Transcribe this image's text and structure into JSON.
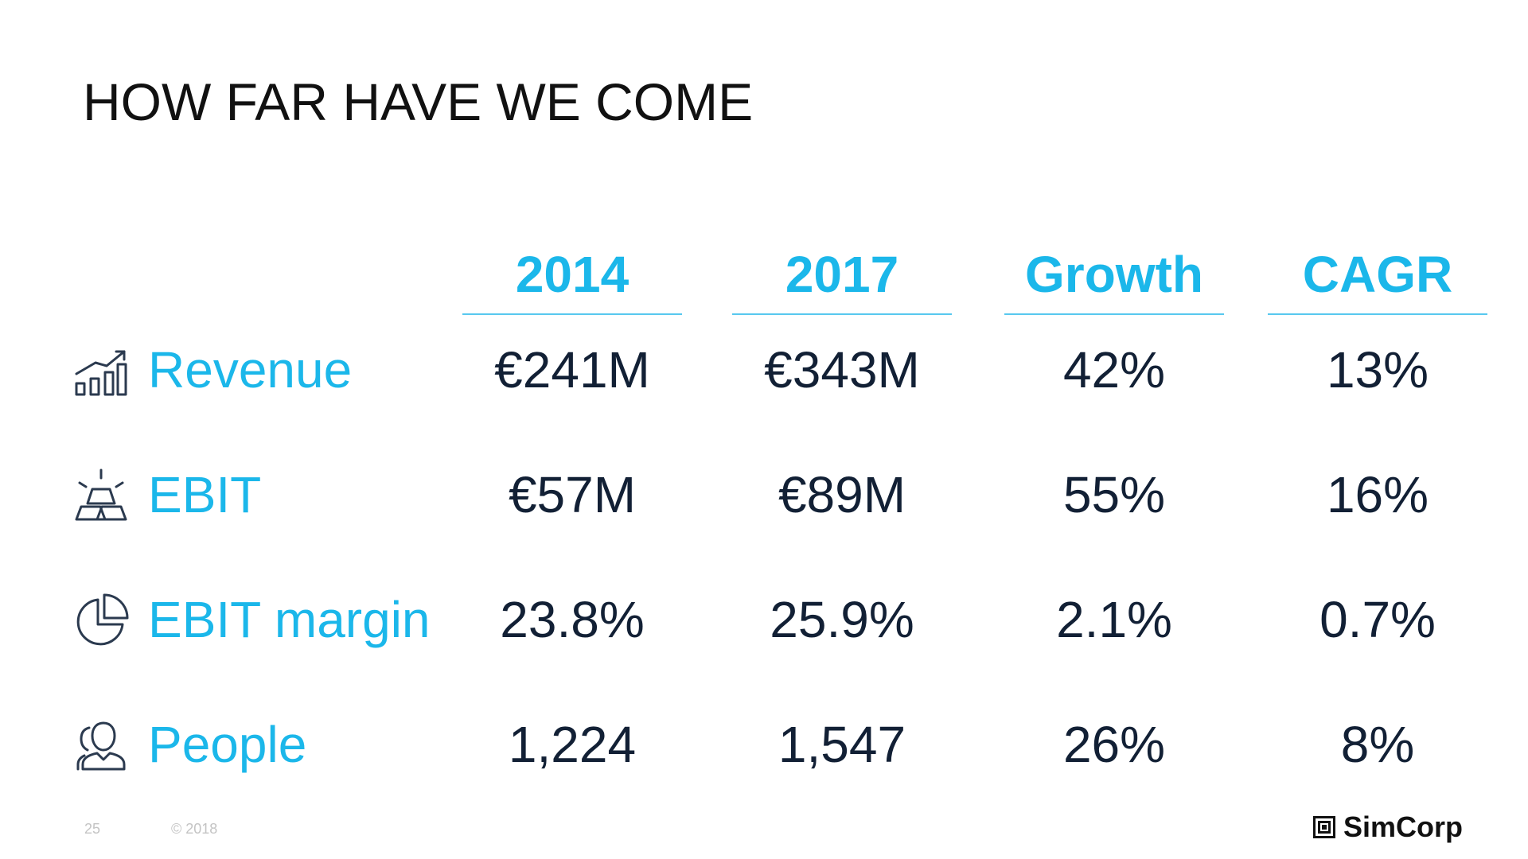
{
  "title": "HOW FAR HAVE WE COME",
  "columns": [
    "2014",
    "2017",
    "Growth",
    "CAGR"
  ],
  "rows": [
    {
      "label": "Revenue",
      "icon": "bar-chart-growth-icon",
      "values": [
        "€241M",
        "€343M",
        "42%",
        "13%"
      ]
    },
    {
      "label": "EBIT",
      "icon": "gold-bars-icon",
      "values": [
        "€57M",
        "€89M",
        "55%",
        "16%"
      ]
    },
    {
      "label": "EBIT margin",
      "icon": "pie-chart-icon",
      "values": [
        "23.8%",
        "25.9%",
        "2.1%",
        "0.7%"
      ]
    },
    {
      "label": "People",
      "icon": "people-icon",
      "values": [
        "1,224",
        "1,547",
        "26%",
        "8%"
      ]
    }
  ],
  "footer": {
    "page": "25",
    "copyright": "© 2018"
  },
  "logo": {
    "text": "SimCorp"
  },
  "colors": {
    "accent": "#1bb7ea",
    "value_text": "#122035",
    "title_text": "#111111",
    "footer_text": "#c4c4c4",
    "icon_stroke": "#2b3a4f"
  }
}
